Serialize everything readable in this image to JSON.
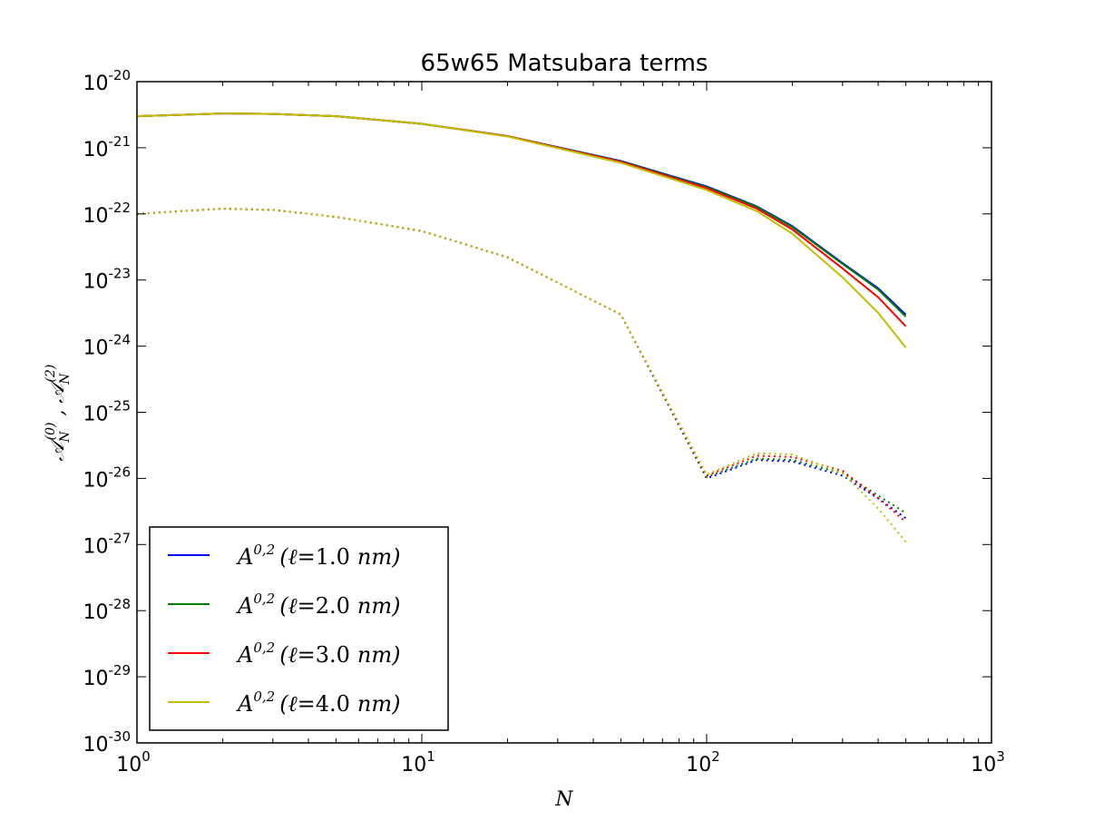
{
  "chart_data": {
    "type": "line",
    "title": "65w65 Matsubara terms",
    "xlabel": "N",
    "ylabel": "𝒜N(0) , 𝒜N(2)",
    "xscale": "log",
    "yscale": "log",
    "xlim": [
      1,
      1000
    ],
    "ylim": [
      1e-30,
      1e-20
    ],
    "x_ticks": [
      {
        "base": "10",
        "exp": "0",
        "value": 1
      },
      {
        "base": "10",
        "exp": "1",
        "value": 10
      },
      {
        "base": "10",
        "exp": "2",
        "value": 100
      },
      {
        "base": "10",
        "exp": "3",
        "value": 1000
      }
    ],
    "y_ticks": [
      {
        "base": "10",
        "exp": "-20",
        "value": 1e-20
      },
      {
        "base": "10",
        "exp": "-21",
        "value": 1e-21
      },
      {
        "base": "10",
        "exp": "-22",
        "value": 1e-22
      },
      {
        "base": "10",
        "exp": "-23",
        "value": 1e-23
      },
      {
        "base": "10",
        "exp": "-24",
        "value": 1e-24
      },
      {
        "base": "10",
        "exp": "-25",
        "value": 1e-25
      },
      {
        "base": "10",
        "exp": "-26",
        "value": 1e-26
      },
      {
        "base": "10",
        "exp": "-27",
        "value": 1e-27
      },
      {
        "base": "10",
        "exp": "-28",
        "value": 1e-28
      },
      {
        "base": "10",
        "exp": "-29",
        "value": 1e-29
      },
      {
        "base": "10",
        "exp": "-30",
        "value": 1e-30
      }
    ],
    "grid": false,
    "legend_position": "lower-left",
    "x": [
      1,
      2,
      3,
      5,
      10,
      20,
      50,
      100,
      150,
      200,
      300,
      400,
      500
    ],
    "series": [
      {
        "name": "A0,2 (ℓ=1.0 nm)",
        "color": "#0000ff",
        "A0": [
          3e-21,
          3.3e-21,
          3.25e-21,
          3e-21,
          2.3e-21,
          1.5e-21,
          6.3e-22,
          2.6e-22,
          1.3e-22,
          6.5e-23,
          1.8e-23,
          7.5e-24,
          3e-24
        ],
        "A2": [
          1e-22,
          1.2e-22,
          1.15e-22,
          9e-23,
          5.5e-23,
          2.2e-23,
          3e-24,
          1e-26,
          1.9e-26,
          1.8e-26,
          1.1e-26,
          5e-27,
          2.5e-27
        ]
      },
      {
        "name": "A0,2 (ℓ=2.0 nm)",
        "color": "#008000",
        "A0": [
          3e-21,
          3.3e-21,
          3.25e-21,
          3e-21,
          2.3e-21,
          1.5e-21,
          6.2e-22,
          2.55e-22,
          1.27e-22,
          6.3e-23,
          1.75e-23,
          7.2e-24,
          2.8e-24
        ],
        "A2": [
          1e-22,
          1.2e-22,
          1.15e-22,
          9e-23,
          5.5e-23,
          2.2e-23,
          3e-24,
          1.05e-26,
          2e-26,
          1.9e-26,
          1.2e-26,
          5.5e-27,
          3e-27
        ]
      },
      {
        "name": "A0,2 (ℓ=3.0 nm)",
        "color": "#ff0000",
        "A0": [
          3e-21,
          3.3e-21,
          3.25e-21,
          3e-21,
          2.3e-21,
          1.5e-21,
          6.1e-22,
          2.45e-22,
          1.2e-22,
          5.8e-23,
          1.5e-23,
          5.5e-24,
          2e-24
        ],
        "A2": [
          1e-22,
          1.2e-22,
          1.15e-22,
          9e-23,
          5.5e-23,
          2.2e-23,
          3e-24,
          1.1e-26,
          2.2e-26,
          2.1e-26,
          1.3e-26,
          5e-27,
          2.2e-27
        ]
      },
      {
        "name": "A0,2 (ℓ=4.0 nm)",
        "color": "#bfbf00",
        "A0": [
          3e-21,
          3.3e-21,
          3.25e-21,
          3e-21,
          2.3e-21,
          1.48e-21,
          5.9e-22,
          2.3e-22,
          1.1e-22,
          5e-23,
          1.1e-23,
          3.2e-24,
          9.5e-25
        ],
        "A2": [
          1e-22,
          1.2e-22,
          1.15e-22,
          9e-23,
          5.5e-23,
          2.2e-23,
          3e-24,
          1.15e-26,
          2.4e-26,
          2.3e-26,
          1.2e-26,
          3.5e-27,
          1.1e-27
        ]
      }
    ],
    "legend": [
      {
        "prefix": "A",
        "sup": "0,2",
        "lparen": "(",
        "ell": "ℓ",
        "eq": "=1.0",
        "unit": "nm",
        "rparen": ")"
      },
      {
        "prefix": "A",
        "sup": "0,2",
        "lparen": "(",
        "ell": "ℓ",
        "eq": "=2.0",
        "unit": "nm",
        "rparen": ")"
      },
      {
        "prefix": "A",
        "sup": "0,2",
        "lparen": "(",
        "ell": "ℓ",
        "eq": "=3.0",
        "unit": "nm",
        "rparen": ")"
      },
      {
        "prefix": "A",
        "sup": "0,2",
        "lparen": "(",
        "ell": "ℓ",
        "eq": "=4.0",
        "unit": "nm",
        "rparen": ")"
      }
    ],
    "ylabel_parts": {
      "sym1": "𝒜",
      "sub1": "N",
      "sup1": "(0)",
      "sep": " , ",
      "sym2": "𝒜",
      "sub2": "N",
      "sup2": "(2)"
    }
  }
}
